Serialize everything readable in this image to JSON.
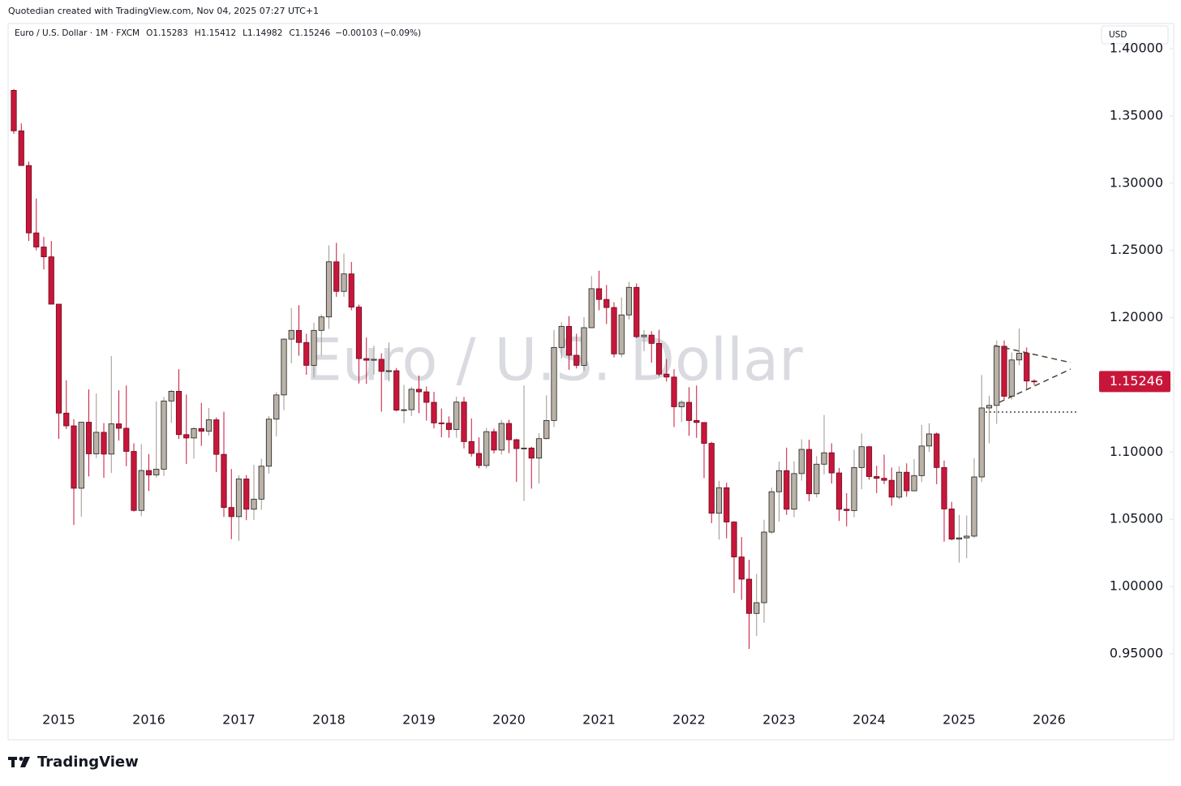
{
  "header": {
    "credit": "Quotedian created with TradingView.com, Nov 04, 2025 07:27 UTC+1",
    "branding": "TradingView"
  },
  "chart_data": {
    "type": "candlestick",
    "title": "Euro / U.S. Dollar · 1M · FXCM",
    "watermark": "Euro / U.S. Dollar",
    "ohlc_prefixes": [
      "O",
      "H",
      "L",
      "C"
    ],
    "change_text": "−0.00103 (−0.09%)",
    "currency": "USD",
    "x_start": "2014-07",
    "open": [
      1.369,
      1.3389,
      1.3131,
      1.263,
      1.2525,
      1.2452,
      1.21,
      1.129,
      1.1195,
      1.0731,
      1.1222,
      1.0987,
      1.1147,
      1.0985,
      1.121,
      1.1177,
      1.1005,
      1.0566,
      1.0863,
      1.083,
      1.0873,
      1.138,
      1.1452,
      1.113,
      1.1105,
      1.1175,
      1.1155,
      1.124,
      1.0983,
      1.0588,
      1.052,
      1.08,
      1.0575,
      1.065,
      1.0895,
      1.1245,
      1.1425,
      1.184,
      1.1905,
      1.1815,
      1.1645,
      1.1905,
      1.2005,
      1.2415,
      1.2195,
      1.2325,
      1.2078,
      1.1695,
      1.1683,
      1.169,
      1.16,
      1.1605,
      1.1312,
      1.1315,
      1.1467,
      1.1448,
      1.137,
      1.1217,
      1.1215,
      1.1168,
      1.1372,
      1.1078,
      1.099,
      1.09,
      1.1152,
      1.1015,
      1.1213,
      1.1092,
      1.1026,
      1.103,
      1.0955,
      1.11,
      1.1235,
      1.1778,
      1.1935,
      1.172,
      1.1645,
      1.1925,
      1.2215,
      1.2135,
      1.2075,
      1.173,
      1.202,
      1.2225,
      1.1858,
      1.187,
      1.1808,
      1.158,
      1.1558,
      1.1337,
      1.137,
      1.1235,
      1.122,
      1.1065,
      1.0545,
      1.0735,
      1.048,
      1.022,
      1.0055,
      0.98,
      0.988,
      1.0405,
      1.0705,
      1.0862,
      1.0575,
      1.084,
      1.102,
      1.069,
      1.091,
      1.0995,
      1.0845,
      1.0575,
      1.0565,
      1.0885,
      1.104,
      1.0818,
      1.0805,
      1.079,
      1.0665,
      1.085,
      1.0712,
      1.0825,
      1.1045,
      1.1135,
      1.0885,
      1.0577,
      1.0353,
      1.0362,
      1.0375,
      1.0815,
      1.1328,
      1.1347,
      1.1787,
      1.1415,
      1.1685,
      1.1735,
      1.15283
    ],
    "high": [
      1.37,
      1.3444,
      1.316,
      1.2886,
      1.26,
      1.257,
      1.21,
      1.1534,
      1.1244,
      1.1225,
      1.1466,
      1.1436,
      1.1216,
      1.1714,
      1.146,
      1.1495,
      1.1065,
      1.1059,
      1.0985,
      1.1376,
      1.141,
      1.1464,
      1.1616,
      1.1428,
      1.1185,
      1.1366,
      1.1327,
      1.1258,
      1.13,
      1.0874,
      1.0828,
      1.0829,
      1.0906,
      1.095,
      1.1268,
      1.1446,
      1.1846,
      1.207,
      1.2092,
      1.188,
      1.1961,
      1.2023,
      1.2537,
      1.2556,
      1.2476,
      1.2414,
      1.2097,
      1.1852,
      1.1791,
      1.1734,
      1.1815,
      1.1625,
      1.15,
      1.1486,
      1.157,
      1.1488,
      1.1448,
      1.1324,
      1.1265,
      1.1412,
      1.141,
      1.125,
      1.1109,
      1.118,
      1.1175,
      1.124,
      1.124,
      1.11,
      1.1495,
      1.104,
      1.114,
      1.1422,
      1.1908,
      1.1966,
      1.2011,
      1.188,
      1.2004,
      1.231,
      1.2349,
      1.2243,
      1.2114,
      1.215,
      1.2266,
      1.2254,
      1.1908,
      1.19,
      1.1909,
      1.1692,
      1.1616,
      1.1386,
      1.1482,
      1.1495,
      1.1185,
      1.1076,
      1.0786,
      1.0773,
      1.0486,
      1.0368,
      1.0198,
      1.0094,
      1.0497,
      1.0736,
      1.0929,
      1.1033,
      1.093,
      1.1095,
      1.1092,
      1.097,
      1.1276,
      1.1065,
      1.0882,
      1.0695,
      1.1017,
      1.1139,
      1.1046,
      1.0898,
      1.0981,
      1.0885,
      1.0895,
      1.0916,
      1.0948,
      1.1202,
      1.1214,
      1.1145,
      1.0937,
      1.063,
      1.0533,
      1.0528,
      1.0955,
      1.1573,
      1.1419,
      1.183,
      1.183,
      1.1741,
      1.1919,
      1.1778,
      1.15412
    ],
    "low": [
      1.3366,
      1.3131,
      1.257,
      1.25,
      1.2358,
      1.21,
      1.1098,
      1.1172,
      1.0458,
      1.052,
      1.0819,
      1.0955,
      1.0809,
      1.0845,
      1.1085,
      1.0895,
      1.0557,
      1.0523,
      1.0711,
      1.0809,
      1.0822,
      1.1217,
      1.1098,
      1.0912,
      1.0952,
      1.1046,
      1.1122,
      1.0851,
      1.0517,
      1.0352,
      1.034,
      1.0494,
      1.0495,
      1.057,
      1.084,
      1.1117,
      1.1312,
      1.166,
      1.1717,
      1.1575,
      1.1554,
      1.1717,
      1.1916,
      1.2155,
      1.2155,
      1.2055,
      1.151,
      1.1508,
      1.1576,
      1.1301,
      1.1526,
      1.1302,
      1.1215,
      1.1269,
      1.1289,
      1.1234,
      1.1176,
      1.111,
      1.1107,
      1.1107,
      1.1028,
      1.0966,
      1.0879,
      1.0879,
      1.099,
      1.0981,
      1.0992,
      1.0778,
      1.0636,
      1.0728,
      1.0767,
      1.1095,
      1.1186,
      1.1696,
      1.1612,
      1.1622,
      1.1603,
      1.1922,
      1.2055,
      1.1952,
      1.1704,
      1.1704,
      1.1986,
      1.1847,
      1.1751,
      1.1664,
      1.1563,
      1.1524,
      1.1186,
      1.1222,
      1.1121,
      1.1106,
      1.0806,
      1.0471,
      1.0349,
      1.0359,
      0.9952,
      0.9901,
      0.9536,
      0.9632,
      0.973,
      1.0393,
      1.0483,
      1.0533,
      1.0516,
      1.0788,
      1.0635,
      1.0662,
      1.0833,
      1.0766,
      1.0488,
      1.0448,
      1.0516,
      1.0724,
      1.0795,
      1.0695,
      1.0762,
      1.0601,
      1.065,
      1.0668,
      1.0709,
      1.0777,
      1.1001,
      1.0761,
      1.0333,
      1.0343,
      1.0178,
      1.0211,
      1.036,
      1.0777,
      1.1065,
      1.121,
      1.1391,
      1.139,
      1.1645,
      1.1468,
      1.14982
    ],
    "close": [
      1.3389,
      1.3131,
      1.263,
      1.2525,
      1.2452,
      1.21,
      1.129,
      1.1195,
      1.0731,
      1.1222,
      1.0987,
      1.1147,
      1.0985,
      1.121,
      1.1177,
      1.1005,
      1.0566,
      1.0863,
      1.083,
      1.0873,
      1.138,
      1.1452,
      1.113,
      1.1105,
      1.1175,
      1.1155,
      1.124,
      1.0983,
      1.0588,
      1.052,
      1.08,
      1.0575,
      1.065,
      1.0895,
      1.1245,
      1.1425,
      1.184,
      1.1905,
      1.1815,
      1.1645,
      1.1905,
      1.2005,
      1.2415,
      1.2195,
      1.2325,
      1.2078,
      1.1695,
      1.1683,
      1.169,
      1.16,
      1.1605,
      1.1312,
      1.1315,
      1.1467,
      1.1448,
      1.137,
      1.1217,
      1.1215,
      1.1168,
      1.1372,
      1.1078,
      1.099,
      1.09,
      1.1152,
      1.1015,
      1.1213,
      1.1092,
      1.1026,
      1.103,
      1.0955,
      1.11,
      1.1235,
      1.1778,
      1.1935,
      1.172,
      1.1645,
      1.1925,
      1.2215,
      1.2135,
      1.2075,
      1.173,
      1.202,
      1.2225,
      1.1858,
      1.187,
      1.1808,
      1.158,
      1.1558,
      1.1337,
      1.137,
      1.1235,
      1.122,
      1.1065,
      1.0545,
      1.0735,
      1.048,
      1.022,
      1.0055,
      0.98,
      0.988,
      1.0405,
      1.0705,
      1.0862,
      1.0575,
      1.084,
      1.102,
      1.069,
      1.091,
      1.0995,
      1.0845,
      1.0575,
      1.0565,
      1.0885,
      1.104,
      1.0818,
      1.0805,
      1.079,
      1.0665,
      1.085,
      1.0712,
      1.0825,
      1.1045,
      1.1135,
      1.0885,
      1.0577,
      1.0353,
      1.0362,
      1.0375,
      1.0815,
      1.1328,
      1.1347,
      1.1787,
      1.1415,
      1.1685,
      1.1735,
      1.15283,
      1.15246
    ],
    "up_color": "#bab2a7",
    "down_color": "#c8163a",
    "ylim": [
      0.88,
      1.4235
    ],
    "yticks": [
      {
        "value": 0.95,
        "label": "0.95000"
      },
      {
        "value": 1.0,
        "label": "1.00000"
      },
      {
        "value": 1.05,
        "label": "1.05000"
      },
      {
        "value": 1.1,
        "label": "1.10000"
      },
      {
        "value": 1.15,
        "label": "1.15000"
      },
      {
        "value": 1.2,
        "label": "1.20000"
      },
      {
        "value": 1.25,
        "label": "1.25000"
      },
      {
        "value": 1.3,
        "label": "1.30000"
      },
      {
        "value": 1.35,
        "label": "1.35000"
      },
      {
        "value": 1.4,
        "label": "1.40000"
      }
    ],
    "xticks": [
      "2015",
      "2016",
      "2017",
      "2018",
      "2019",
      "2020",
      "2021",
      "2022",
      "2023",
      "2024",
      "2025",
      "2026"
    ],
    "grid": false
  }
}
